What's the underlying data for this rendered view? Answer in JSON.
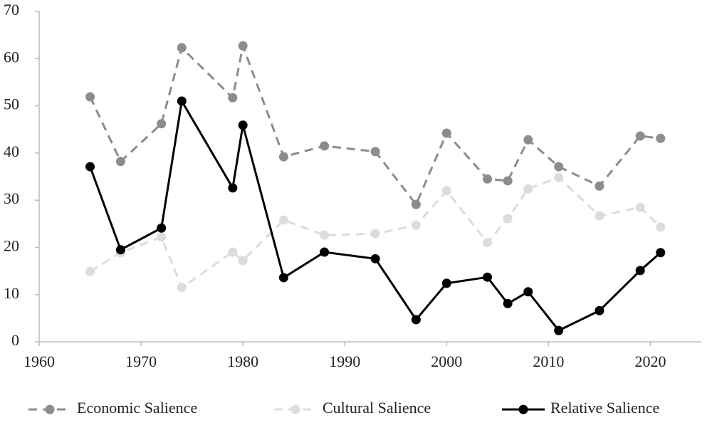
{
  "chart_data": {
    "type": "line",
    "x": [
      1965,
      1968,
      1972,
      1974,
      1979,
      1980,
      1984,
      1988,
      1993,
      1997,
      2000,
      2004,
      2006,
      2008,
      2011,
      2015,
      2019,
      2021
    ],
    "series": [
      {
        "name": "Economic Salience",
        "color": "#8c8c8c",
        "dashed": true,
        "values": [
          51.9,
          38.2,
          46.2,
          62.3,
          51.7,
          62.7,
          39.2,
          41.5,
          40.3,
          29.1,
          44.2,
          34.5,
          34.1,
          42.8,
          37.1,
          33.0,
          43.6,
          43.1
        ]
      },
      {
        "name": "Cultural Salience",
        "color": "#dcdcdc",
        "dashed": true,
        "values": [
          14.9,
          18.9,
          22.2,
          11.5,
          19.0,
          17.2,
          25.8,
          22.6,
          22.9,
          24.7,
          32.0,
          21.0,
          26.1,
          32.4,
          34.8,
          26.7,
          28.5,
          24.3
        ]
      },
      {
        "name": "Relative Salience",
        "color": "#000000",
        "dashed": false,
        "values": [
          37.1,
          19.5,
          24.1,
          51.0,
          32.6,
          45.9,
          13.6,
          19.0,
          17.6,
          4.7,
          12.4,
          13.7,
          8.1,
          10.6,
          2.4,
          6.6,
          15.1,
          18.9
        ]
      }
    ],
    "xlim": [
      1960,
      2025
    ],
    "xticks": [
      1960,
      1970,
      1980,
      1990,
      2000,
      2010,
      2020
    ],
    "ylim": [
      0,
      70
    ],
    "yticks": [
      0,
      10,
      20,
      30,
      40,
      50,
      60,
      70
    ],
    "grid": false,
    "legend": "bottom"
  }
}
